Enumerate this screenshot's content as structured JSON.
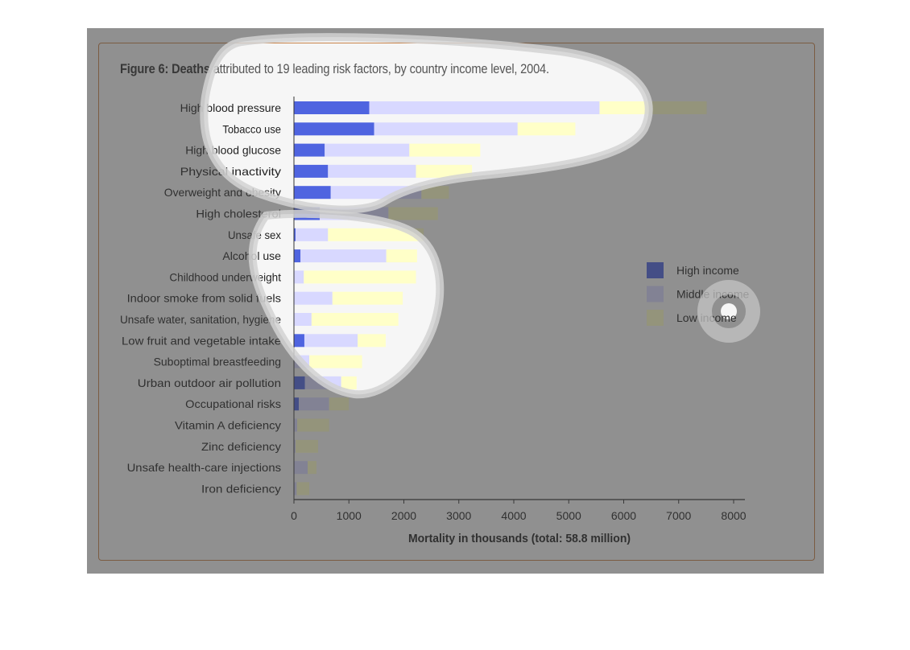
{
  "figure": {
    "title_bold": "Figure 6: Deaths",
    "title_rest": " attributed to 19 leading risk factors, by country income level, 2004."
  },
  "colors": {
    "high_income": "#4f64e0",
    "middle_income": "#d8d8ff",
    "low_income": "#ffffc8",
    "overlay_dark": "rgba(0,0,0,0.66)",
    "frame_border": "#c8834a"
  },
  "chart_data": {
    "type": "bar",
    "orientation": "horizontal",
    "stacked": true,
    "title": "Figure 6: Deaths attributed to 19 leading risk factors, by country income level, 2004.",
    "xlabel": "Mortality in thousands (total: 58.8 million)",
    "ylabel": "",
    "xlim": [
      0,
      8000
    ],
    "xticks": [
      0,
      1000,
      2000,
      3000,
      4000,
      5000,
      6000,
      7000,
      8000
    ],
    "grid": false,
    "legend_position": "right",
    "categories": [
      "High blood pressure",
      "Tobacco use",
      "High blood glucose",
      "Physical inactivity",
      "Overweight and obesity",
      "High cholesterol",
      "Unsafe sex",
      "Alcohol use",
      "Childhood underweight",
      "Indoor smoke from solid fuels",
      "Unsafe water, sanitation, hygiene",
      "Low fruit and vegetable intake",
      "Suboptimal breastfeeding",
      "Urban outdoor air pollution",
      "Occupational risks",
      "Vitamin A deficiency",
      "Zinc deficiency",
      "Unsafe health-care injections",
      "Iron deficiency"
    ],
    "series": [
      {
        "name": "High income",
        "values": [
          1370,
          1460,
          560,
          620,
          670,
          470,
          30,
          120,
          0,
          0,
          0,
          190,
          0,
          200,
          90,
          0,
          0,
          0,
          0
        ]
      },
      {
        "name": "Middle income",
        "values": [
          4190,
          2610,
          1540,
          1600,
          1650,
          1250,
          590,
          1560,
          180,
          700,
          320,
          970,
          280,
          660,
          550,
          60,
          30,
          250,
          50
        ]
      },
      {
        "name": "Low income",
        "values": [
          1950,
          1050,
          1290,
          1020,
          500,
          900,
          1740,
          560,
          2040,
          1280,
          1580,
          510,
          960,
          280,
          360,
          580,
          410,
          160,
          230
        ]
      }
    ]
  }
}
